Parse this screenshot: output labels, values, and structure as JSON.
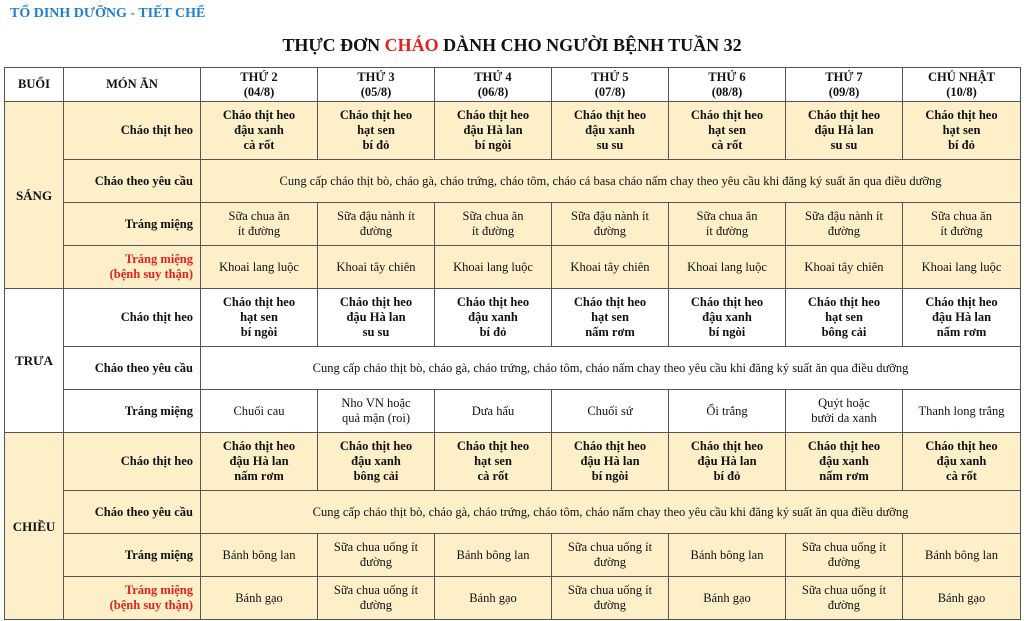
{
  "header": {
    "department": "TỔ DINH DƯỠNG - TIẾT CHẾ",
    "title_before": "THỰC ĐƠN ",
    "title_highlight": "CHÁO",
    "title_after": " DÀNH CHO NGƯỜI BỆNH TUẦN 32",
    "highlight_color": "#e8201c",
    "department_color": "#1f7fcb"
  },
  "table": {
    "col_session": "BUỔI",
    "col_dish": "MÓN ĂN",
    "days": [
      {
        "name": "THỨ 2",
        "date": "(04/8)"
      },
      {
        "name": "THỨ 3",
        "date": "(05/8)"
      },
      {
        "name": "THỨ 4",
        "date": "(06/8)"
      },
      {
        "name": "THỨ 5",
        "date": "(07/8)"
      },
      {
        "name": "THỨ 6",
        "date": "(08/8)"
      },
      {
        "name": "THỨ 7",
        "date": "(09/8)"
      },
      {
        "name": "CHỦ NHẬT",
        "date": "(10/8)"
      }
    ],
    "sessions": [
      {
        "name": "SÁNG",
        "background": "#fdf0c9",
        "rows": [
          {
            "dish": "Cháo thịt heo",
            "bold": true,
            "cells": [
              [
                "Cháo thịt heo",
                "đậu xanh",
                "cà rốt"
              ],
              [
                "Cháo thịt heo",
                "hạt sen",
                "bí đỏ"
              ],
              [
                "Cháo thịt heo",
                "đậu Hà lan",
                "bí ngòi"
              ],
              [
                "Cháo thịt heo",
                "đậu xanh",
                "su su"
              ],
              [
                "Cháo thịt heo",
                "hạt sen",
                "cà rốt"
              ],
              [
                "Cháo thịt heo",
                "đậu Hà lan",
                "su su"
              ],
              [
                "Cháo thịt heo",
                "hạt sen",
                "bí đỏ"
              ]
            ]
          },
          {
            "dish": "Cháo theo yêu cầu",
            "span": "Cung cấp cháo thịt bò, cháo gà, cháo trứng, cháo tôm, cháo cá basa cháo nấm chay theo yêu cầu khi đăng ký suất ăn qua điều dưỡng"
          },
          {
            "dish": "Tráng miệng",
            "cells": [
              [
                "Sữa chua ăn",
                "ít đường"
              ],
              [
                "Sữa đậu nành ít",
                "đường"
              ],
              [
                "Sữa chua ăn",
                "ít đường"
              ],
              [
                "Sữa đậu nành ít",
                "đường"
              ],
              [
                "Sữa chua ăn",
                "ít đường"
              ],
              [
                "Sữa đậu nành ít",
                "đường"
              ],
              [
                "Sữa chua ăn",
                "ít đường"
              ]
            ]
          },
          {
            "dish": "Tráng miệng",
            "dish_note": "(bệnh suy thận)",
            "red": true,
            "cells": [
              [
                "Khoai lang luộc"
              ],
              [
                "Khoai tây chiên"
              ],
              [
                "Khoai lang luộc"
              ],
              [
                "Khoai tây chiên"
              ],
              [
                "Khoai lang luộc"
              ],
              [
                "Khoai tây chiên"
              ],
              [
                "Khoai lang luộc"
              ]
            ]
          }
        ]
      },
      {
        "name": "TRƯA",
        "background": "#ffffff",
        "rows": [
          {
            "dish": "Cháo thịt heo",
            "bold": true,
            "cells": [
              [
                "Cháo thịt heo",
                "hạt sen",
                "bí ngòi"
              ],
              [
                "Cháo thịt heo",
                "đậu Hà lan",
                "su su"
              ],
              [
                "Cháo thịt heo",
                "đậu xanh",
                "bí đỏ"
              ],
              [
                "Cháo thịt heo",
                "hạt sen",
                "nấm rơm"
              ],
              [
                "Cháo thịt heo",
                "đậu xanh",
                "bí ngòi"
              ],
              [
                "Cháo thịt heo",
                "hạt sen",
                "bông cải"
              ],
              [
                "Cháo thịt heo",
                "đậu Hà lan",
                "nấm rơm"
              ]
            ]
          },
          {
            "dish": "Cháo theo yêu cầu",
            "span": "Cung cấp cháo thịt bò, cháo gà, cháo trứng, cháo tôm, cháo nấm chay theo yêu cầu khi đăng ký suất ăn qua điều dưỡng"
          },
          {
            "dish": "Tráng miệng",
            "cells": [
              [
                "Chuối cau"
              ],
              [
                "Nho VN hoặc",
                "quả mận (roi)"
              ],
              [
                "Dưa hấu"
              ],
              [
                "Chuối sứ"
              ],
              [
                "Ổi trắng"
              ],
              [
                "Quýt hoặc",
                "bưởi da xanh"
              ],
              [
                "Thanh long trắng"
              ]
            ]
          }
        ]
      },
      {
        "name": "CHIỀU",
        "background": "#fdf0c9",
        "rows": [
          {
            "dish": "Cháo thịt heo",
            "bold": true,
            "cells": [
              [
                "Cháo thịt heo",
                "đậu Hà lan",
                "nấm rơm"
              ],
              [
                "Cháo thịt heo",
                "đậu xanh",
                "bông cải"
              ],
              [
                "Cháo thịt heo",
                "hạt sen",
                "cà rốt"
              ],
              [
                "Cháo thịt heo",
                "đậu Hà lan",
                "bí ngòi"
              ],
              [
                "Cháo thịt heo",
                "đậu Hà lan",
                "bí đỏ"
              ],
              [
                "Cháo thịt heo",
                "đậu xanh",
                "nấm rơm"
              ],
              [
                "Cháo thịt heo",
                "đậu xanh",
                "cà rốt"
              ]
            ]
          },
          {
            "dish": "Cháo theo yêu cầu",
            "span": "Cung cấp cháo thịt bò, cháo gà, cháo trứng, cháo tôm, cháo nấm chay theo yêu cầu khi đăng ký suất ăn qua điều dưỡng"
          },
          {
            "dish": "Tráng miệng",
            "cells": [
              [
                "Bánh bông lan"
              ],
              [
                "Sữa chua uống ít",
                "đường"
              ],
              [
                "Bánh bông lan"
              ],
              [
                "Sữa chua uống ít",
                "đường"
              ],
              [
                "Bánh bông lan"
              ],
              [
                "Sữa chua uống ít",
                "đường"
              ],
              [
                "Bánh bông lan"
              ]
            ]
          },
          {
            "dish": "Tráng miệng",
            "dish_note": "(bệnh suy thận)",
            "red": true,
            "cells": [
              [
                "Bánh gạo"
              ],
              [
                "Sữa chua uống ít",
                "đường"
              ],
              [
                "Bánh gạo"
              ],
              [
                "Sữa chua uống ít",
                "đường"
              ],
              [
                "Bánh gạo"
              ],
              [
                "Sữa chua uống ít",
                "đường"
              ],
              [
                "Bánh gạo"
              ]
            ]
          }
        ]
      }
    ]
  }
}
